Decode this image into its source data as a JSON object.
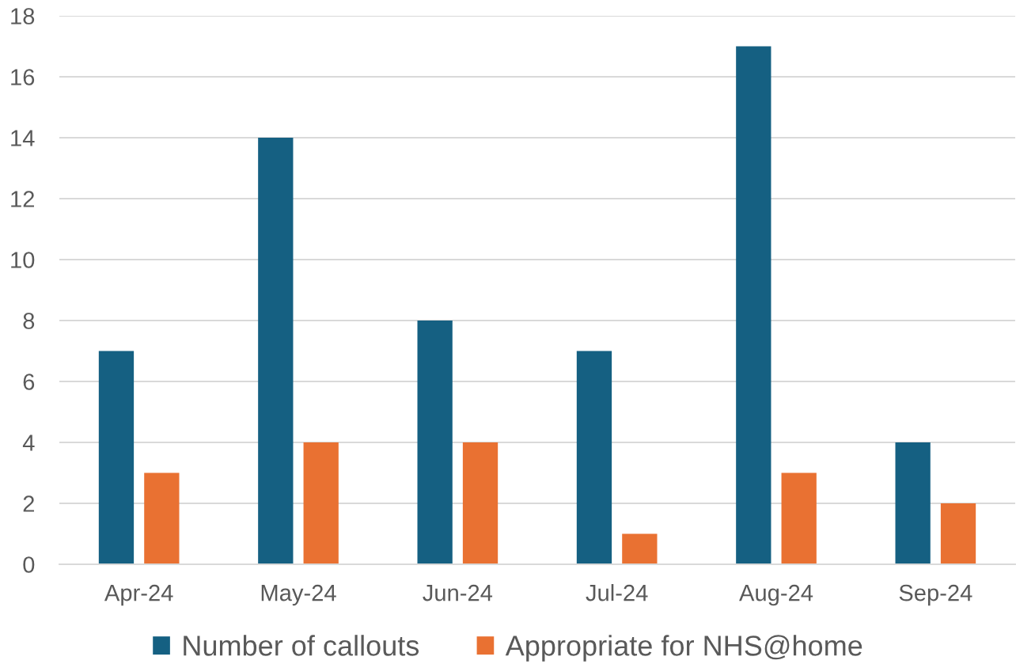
{
  "chart_data": {
    "type": "bar",
    "categories": [
      "Apr-24",
      "May-24",
      "Jun-24",
      "Jul-24",
      "Aug-24",
      "Sep-24"
    ],
    "series": [
      {
        "name": "Number of callouts",
        "color": "#156082",
        "values": [
          7,
          14,
          8,
          7,
          17,
          4
        ]
      },
      {
        "name": "Appropriate for NHS@home",
        "color": "#e97132",
        "values": [
          3,
          4,
          4,
          1,
          3,
          2
        ]
      }
    ],
    "ylim": [
      0,
      18
    ],
    "yticks": [
      0,
      2,
      4,
      6,
      8,
      10,
      12,
      14,
      16,
      18
    ],
    "grid": "y",
    "legend": "bottom"
  }
}
